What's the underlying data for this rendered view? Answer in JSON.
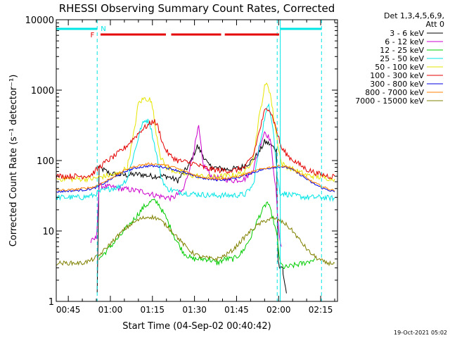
{
  "chart_data": {
    "type": "line",
    "title": "RHESSI Observing Summary Count Rates, Corrected",
    "xlabel": "Start Time (04-Sep-02 00:40:42)",
    "ylabel": "Corrected Count Rate (s⁻¹ detector⁻¹)",
    "y_scale": "log",
    "ylim": [
      1,
      10000
    ],
    "xlim_minutes": [
      40.7,
      141
    ],
    "x_ticks": [
      {
        "m": 45,
        "label": "00:45"
      },
      {
        "m": 60,
        "label": "01:00"
      },
      {
        "m": 75,
        "label": "01:15"
      },
      {
        "m": 90,
        "label": "01:30"
      },
      {
        "m": 105,
        "label": "01:45"
      },
      {
        "m": 120,
        "label": "02:00"
      },
      {
        "m": 135,
        "label": "02:15"
      }
    ],
    "y_ticks": [
      {
        "v": 1,
        "label": "1"
      },
      {
        "v": 10,
        "label": "10"
      },
      {
        "v": 100,
        "label": "100"
      },
      {
        "v": 1000,
        "label": "1000"
      },
      {
        "v": 10000,
        "label": "10000"
      }
    ],
    "legend_header": [
      "Det 1,3,4,5,6,9,",
      "Att 0"
    ],
    "legend_placement": "right",
    "flag_labels": {
      "F": "F",
      "N": "N"
    },
    "footer_date": "19-Oct-2021 05:02",
    "night_bars": [
      [
        40.7,
        55.3
      ],
      [
        120.6,
        135.3
      ]
    ],
    "night_boundaries": [
      40.7,
      55.3,
      119.5,
      120.6,
      135.3
    ],
    "flare_bars": [
      [
        56.5,
        79.8
      ],
      [
        81.7,
        99.5
      ],
      [
        100.8,
        120.2
      ]
    ],
    "series": [
      {
        "name": "3 - 6 keV",
        "color": "#000000",
        "points": [
          [
            55.3,
            1.3
          ],
          [
            56,
            80
          ],
          [
            60,
            65
          ],
          [
            65,
            62
          ],
          [
            70,
            64
          ],
          [
            75,
            60
          ],
          [
            80,
            60
          ],
          [
            84,
            52
          ],
          [
            88,
            85
          ],
          [
            91,
            160
          ],
          [
            93,
            120
          ],
          [
            95,
            85
          ],
          [
            98,
            78
          ],
          [
            102,
            75
          ],
          [
            106,
            78
          ],
          [
            110,
            95
          ],
          [
            113,
            130
          ],
          [
            115,
            185
          ],
          [
            117,
            170
          ],
          [
            119.2,
            140
          ],
          [
            119.8,
            4
          ],
          [
            120.3,
            3
          ],
          [
            121.5,
            3
          ],
          [
            121.6,
            2.5
          ],
          [
            122.8,
            1.3
          ]
        ]
      },
      {
        "name": "6 - 12 keV",
        "color": "#cc00cc",
        "points": [
          [
            53,
            7
          ],
          [
            55,
            8
          ],
          [
            56,
            44
          ],
          [
            60,
            42
          ],
          [
            64,
            40
          ],
          [
            68,
            38
          ],
          [
            72,
            36
          ],
          [
            75,
            33
          ],
          [
            78,
            31
          ],
          [
            82,
            29
          ],
          [
            86,
            38
          ],
          [
            89,
            100
          ],
          [
            91.5,
            300
          ],
          [
            93,
            90
          ],
          [
            96,
            60
          ],
          [
            100,
            55
          ],
          [
            104,
            52
          ],
          [
            108,
            55
          ],
          [
            111,
            75
          ],
          [
            113,
            150
          ],
          [
            115,
            260
          ],
          [
            117,
            200
          ],
          [
            119,
            40
          ],
          [
            120,
            10
          ],
          [
            121,
            6
          ]
        ]
      },
      {
        "name": "12 - 25 keV",
        "color": "#00cc00",
        "points": [
          [
            56,
            4
          ],
          [
            60,
            6
          ],
          [
            64,
            9
          ],
          [
            68,
            14
          ],
          [
            72,
            22
          ],
          [
            75,
            27
          ],
          [
            77,
            25
          ],
          [
            80,
            15
          ],
          [
            83,
            8
          ],
          [
            86,
            5
          ],
          [
            89,
            4
          ],
          [
            92,
            4
          ],
          [
            95,
            4
          ],
          [
            98,
            3.5
          ],
          [
            101,
            4
          ],
          [
            104,
            4
          ],
          [
            107,
            5
          ],
          [
            110,
            8
          ],
          [
            113,
            16
          ],
          [
            116,
            26
          ],
          [
            118,
            15
          ],
          [
            119.5,
            8
          ],
          [
            120.5,
            3.5
          ],
          [
            122,
            3
          ],
          [
            129,
            3.5
          ],
          [
            133,
            4
          ]
        ]
      },
      {
        "name": "25 - 50 keV",
        "color": "#00e5e5",
        "points": [
          [
            40.7,
            30
          ],
          [
            45,
            30
          ],
          [
            50,
            30
          ],
          [
            54,
            32
          ],
          [
            56,
            36
          ],
          [
            60,
            40
          ],
          [
            63,
            42
          ],
          [
            66,
            55
          ],
          [
            69,
            150
          ],
          [
            71,
            300
          ],
          [
            72.5,
            380
          ],
          [
            74,
            350
          ],
          [
            76,
            150
          ],
          [
            78,
            60
          ],
          [
            80,
            40
          ],
          [
            84,
            36
          ],
          [
            88,
            34
          ],
          [
            92,
            33
          ],
          [
            96,
            32
          ],
          [
            100,
            32
          ],
          [
            104,
            32
          ],
          [
            108,
            33
          ],
          [
            111,
            45
          ],
          [
            113,
            150
          ],
          [
            115,
            400
          ],
          [
            116.5,
            640
          ],
          [
            118,
            300
          ],
          [
            119.5,
            60
          ],
          [
            120.5,
            35
          ],
          [
            125,
            32
          ],
          [
            130,
            30
          ],
          [
            135,
            30
          ],
          [
            140,
            29
          ]
        ]
      },
      {
        "name": "50 - 100 keV",
        "color": "#e5e500",
        "points": [
          [
            40.7,
            55
          ],
          [
            45,
            55
          ],
          [
            50,
            55
          ],
          [
            54,
            55
          ],
          [
            56,
            58
          ],
          [
            60,
            62
          ],
          [
            63,
            65
          ],
          [
            66,
            80
          ],
          [
            68,
            200
          ],
          [
            70,
            650
          ],
          [
            72,
            760
          ],
          [
            74,
            740
          ],
          [
            75,
            600
          ],
          [
            76,
            300
          ],
          [
            78,
            110
          ],
          [
            80,
            80
          ],
          [
            84,
            68
          ],
          [
            88,
            62
          ],
          [
            92,
            60
          ],
          [
            96,
            58
          ],
          [
            100,
            60
          ],
          [
            104,
            62
          ],
          [
            108,
            68
          ],
          [
            111,
            110
          ],
          [
            113,
            400
          ],
          [
            115,
            1100
          ],
          [
            116,
            1250
          ],
          [
            117,
            900
          ],
          [
            118.5,
            350
          ],
          [
            120,
            150
          ],
          [
            121,
            90
          ],
          [
            125,
            75
          ],
          [
            130,
            62
          ],
          [
            135,
            58
          ],
          [
            140,
            55
          ]
        ]
      },
      {
        "name": "100 - 300 keV",
        "color": "#e50000",
        "points": [
          [
            40.7,
            60
          ],
          [
            45,
            60
          ],
          [
            50,
            60
          ],
          [
            53,
            62
          ],
          [
            56,
            80
          ],
          [
            59,
            100
          ],
          [
            62,
            120
          ],
          [
            65,
            150
          ],
          [
            68,
            200
          ],
          [
            71,
            270
          ],
          [
            74,
            330
          ],
          [
            75.5,
            370
          ],
          [
            77,
            300
          ],
          [
            79,
            160
          ],
          [
            81,
            120
          ],
          [
            84,
            100
          ],
          [
            87,
            95
          ],
          [
            90,
            90
          ],
          [
            93,
            80
          ],
          [
            96,
            75
          ],
          [
            100,
            72
          ],
          [
            104,
            72
          ],
          [
            108,
            80
          ],
          [
            111,
            120
          ],
          [
            113,
            250
          ],
          [
            115,
            500
          ],
          [
            116.5,
            570
          ],
          [
            118,
            400
          ],
          [
            119.5,
            250
          ],
          [
            121,
            150
          ],
          [
            124,
            110
          ],
          [
            127,
            90
          ],
          [
            130,
            75
          ],
          [
            134,
            65
          ],
          [
            138,
            60
          ],
          [
            140,
            60
          ]
        ]
      },
      {
        "name": "300 - 800 keV",
        "color": "#0000e0",
        "points": [
          [
            40.7,
            36
          ],
          [
            45,
            37
          ],
          [
            50,
            38
          ],
          [
            54,
            40
          ],
          [
            58,
            48
          ],
          [
            62,
            60
          ],
          [
            66,
            72
          ],
          [
            70,
            80
          ],
          [
            74,
            84
          ],
          [
            78,
            82
          ],
          [
            82,
            76
          ],
          [
            86,
            68
          ],
          [
            90,
            60
          ],
          [
            94,
            55
          ],
          [
            98,
            53
          ],
          [
            102,
            54
          ],
          [
            106,
            58
          ],
          [
            110,
            66
          ],
          [
            114,
            74
          ],
          [
            118,
            80
          ],
          [
            121,
            82
          ],
          [
            124,
            78
          ],
          [
            128,
            62
          ],
          [
            132,
            48
          ],
          [
            136,
            40
          ],
          [
            140,
            36
          ]
        ]
      },
      {
        "name": "800 - 7000 keV",
        "color": "#ff8000",
        "points": [
          [
            40.7,
            38
          ],
          [
            45,
            38
          ],
          [
            50,
            40
          ],
          [
            54,
            42
          ],
          [
            58,
            50
          ],
          [
            62,
            62
          ],
          [
            66,
            76
          ],
          [
            70,
            85
          ],
          [
            74,
            90
          ],
          [
            78,
            88
          ],
          [
            82,
            82
          ],
          [
            86,
            72
          ],
          [
            90,
            62
          ],
          [
            94,
            57
          ],
          [
            98,
            55
          ],
          [
            102,
            56
          ],
          [
            106,
            60
          ],
          [
            110,
            68
          ],
          [
            114,
            76
          ],
          [
            118,
            82
          ],
          [
            121,
            84
          ],
          [
            124,
            80
          ],
          [
            128,
            64
          ],
          [
            132,
            50
          ],
          [
            136,
            42
          ],
          [
            140,
            37
          ]
        ]
      },
      {
        "name": "7000 - 15000 keV",
        "color": "#808000",
        "points": [
          [
            40.7,
            3.5
          ],
          [
            45,
            3.5
          ],
          [
            50,
            3.5
          ],
          [
            53,
            3.8
          ],
          [
            56,
            4.5
          ],
          [
            59,
            6
          ],
          [
            62,
            8
          ],
          [
            65,
            10.5
          ],
          [
            68,
            13
          ],
          [
            71,
            15
          ],
          [
            74,
            16
          ],
          [
            77,
            15
          ],
          [
            80,
            12
          ],
          [
            83,
            9
          ],
          [
            86,
            6.5
          ],
          [
            89,
            5
          ],
          [
            92,
            4.3
          ],
          [
            95,
            4.1
          ],
          [
            98,
            4
          ],
          [
            101,
            4.5
          ],
          [
            104,
            5.5
          ],
          [
            107,
            7.5
          ],
          [
            110,
            10
          ],
          [
            113,
            12.5
          ],
          [
            116,
            14.5
          ],
          [
            119,
            15
          ],
          [
            122,
            13
          ],
          [
            125,
            10
          ],
          [
            128,
            7
          ],
          [
            131,
            5
          ],
          [
            134,
            4
          ],
          [
            137,
            3.5
          ],
          [
            140,
            3.5
          ]
        ]
      }
    ]
  }
}
